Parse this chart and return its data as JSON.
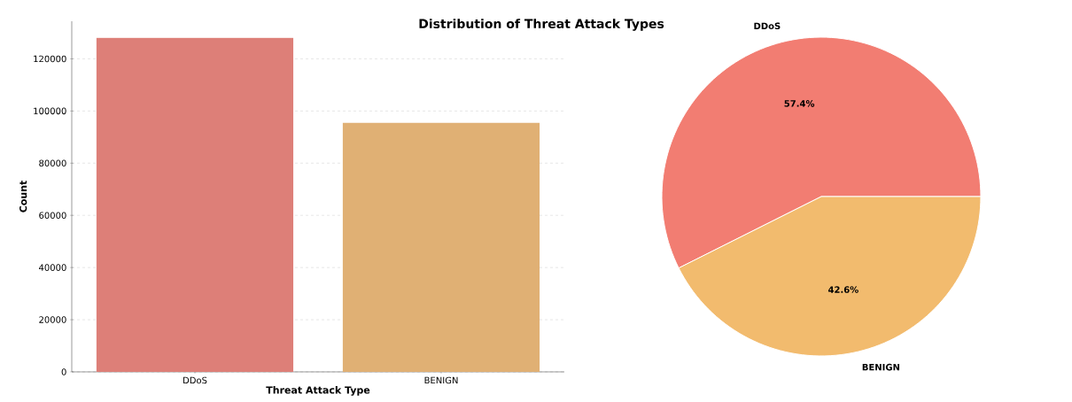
{
  "chart_data": [
    {
      "type": "bar",
      "title": "Distribution of Threat Attack Types",
      "xlabel": "Threat Attack Type",
      "ylabel": "Count",
      "categories": [
        "DDoS",
        "BENIGN"
      ],
      "values": [
        128000,
        95500
      ],
      "colors": [
        "#dd7f78",
        "#e0b074"
      ],
      "ylim": [
        0,
        134400
      ],
      "yticks": [
        0,
        20000,
        40000,
        60000,
        80000,
        100000,
        120000
      ],
      "grid": "y"
    },
    {
      "type": "pie",
      "categories": [
        "DDoS",
        "BENIGN"
      ],
      "values": [
        57.4,
        42.6
      ],
      "colors": [
        "#f27d72",
        "#f2bb6e"
      ],
      "value_labels": [
        "57.4%",
        "42.6%"
      ]
    }
  ]
}
